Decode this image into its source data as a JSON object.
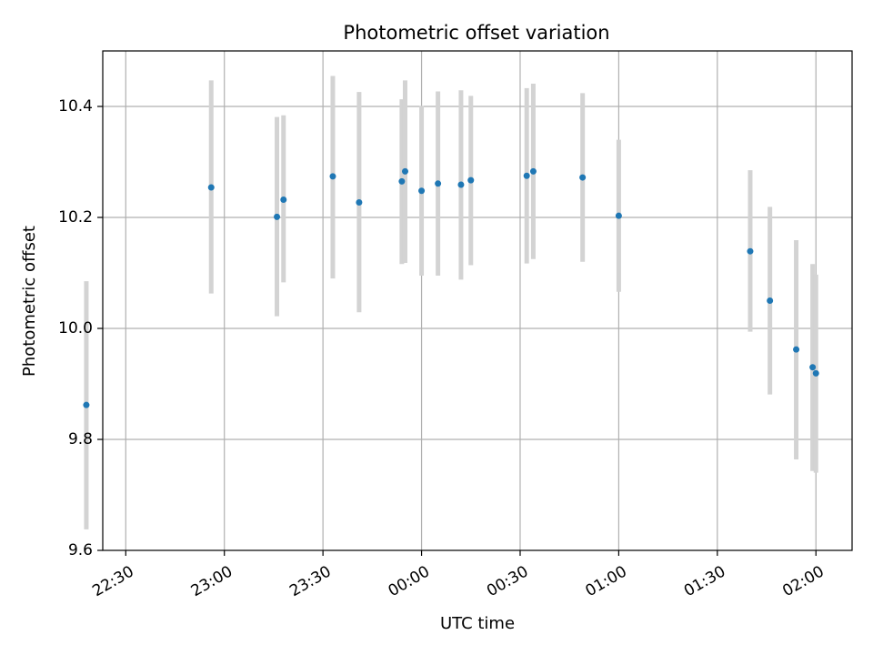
{
  "chart_data": {
    "type": "scatter",
    "title": "Photometric offset variation",
    "xlabel": "UTC time",
    "ylabel": "Photometric offset",
    "grid": true,
    "x_ticks": [
      "22:30",
      "23:00",
      "23:30",
      "00:00",
      "00:30",
      "01:00",
      "01:30",
      "02:00"
    ],
    "y_ticks": [
      "9.6",
      "9.8",
      "10.0",
      "10.2",
      "10.4"
    ],
    "xlim": [
      "22:23",
      "02:11"
    ],
    "ylim": [
      9.6,
      10.5
    ],
    "marker_color": "#1f77b4",
    "errorbar_color": "#d3d3d3",
    "series": [
      {
        "points": [
          {
            "x": "22:18",
            "y": 9.862,
            "yerr_low": 9.638,
            "yerr_high": 10.085
          },
          {
            "x": "22:56",
            "y": 10.254,
            "yerr_low": 10.063,
            "yerr_high": 10.447
          },
          {
            "x": "23:16",
            "y": 10.201,
            "yerr_low": 10.022,
            "yerr_high": 10.381
          },
          {
            "x": "23:18",
            "y": 10.232,
            "yerr_low": 10.083,
            "yerr_high": 10.384
          },
          {
            "x": "23:33",
            "y": 10.274,
            "yerr_low": 10.09,
            "yerr_high": 10.455
          },
          {
            "x": "23:41",
            "y": 10.227,
            "yerr_low": 10.029,
            "yerr_high": 10.426
          },
          {
            "x": "23:54",
            "y": 10.265,
            "yerr_low": 10.116,
            "yerr_high": 10.413
          },
          {
            "x": "23:55",
            "y": 10.283,
            "yerr_low": 10.118,
            "yerr_high": 10.447
          },
          {
            "x": "00:00",
            "y": 10.248,
            "yerr_low": 10.095,
            "yerr_high": 10.401
          },
          {
            "x": "00:05",
            "y": 10.261,
            "yerr_low": 10.095,
            "yerr_high": 10.427
          },
          {
            "x": "00:12",
            "y": 10.259,
            "yerr_low": 10.088,
            "yerr_high": 10.429
          },
          {
            "x": "00:15",
            "y": 10.267,
            "yerr_low": 10.114,
            "yerr_high": 10.419
          },
          {
            "x": "00:32",
            "y": 10.275,
            "yerr_low": 10.117,
            "yerr_high": 10.433
          },
          {
            "x": "00:34",
            "y": 10.283,
            "yerr_low": 10.125,
            "yerr_high": 10.441
          },
          {
            "x": "00:49",
            "y": 10.272,
            "yerr_low": 10.12,
            "yerr_high": 10.424
          },
          {
            "x": "01:00",
            "y": 10.203,
            "yerr_low": 10.066,
            "yerr_high": 10.34
          },
          {
            "x": "01:40",
            "y": 10.139,
            "yerr_low": 9.994,
            "yerr_high": 10.285
          },
          {
            "x": "01:46",
            "y": 10.05,
            "yerr_low": 9.881,
            "yerr_high": 10.219
          },
          {
            "x": "01:54",
            "y": 9.962,
            "yerr_low": 9.764,
            "yerr_high": 10.159
          },
          {
            "x": "01:59",
            "y": 9.93,
            "yerr_low": 9.743,
            "yerr_high": 10.116
          },
          {
            "x": "02:00",
            "y": 9.919,
            "yerr_low": 9.74,
            "yerr_high": 10.097
          }
        ]
      }
    ]
  }
}
